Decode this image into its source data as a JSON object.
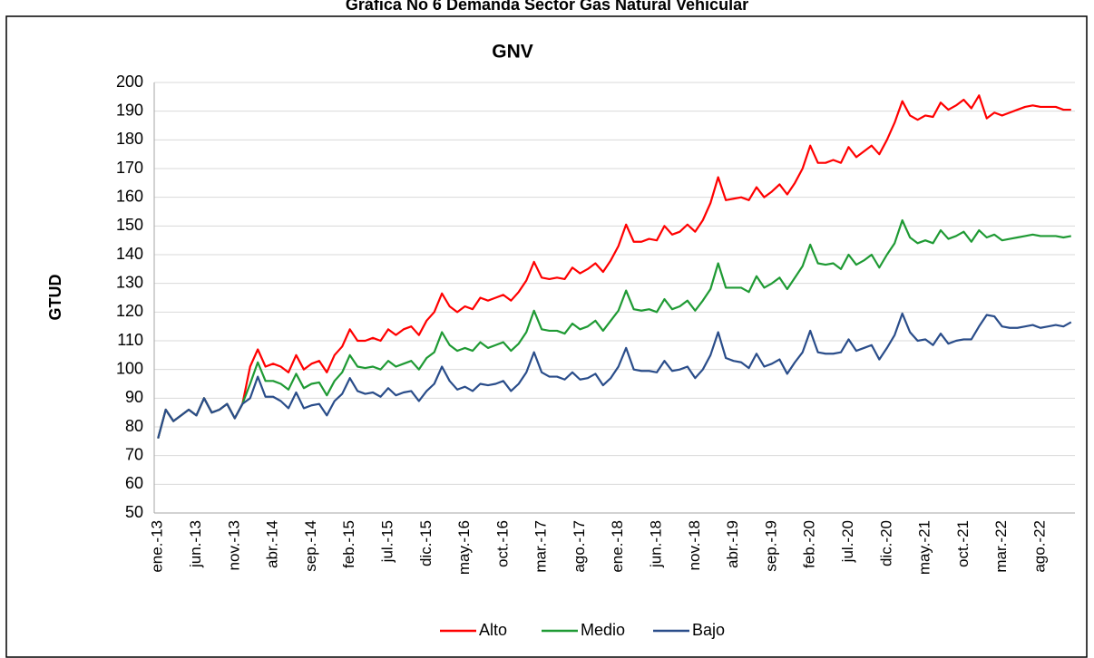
{
  "chart_data": {
    "type": "line",
    "caption": "Gráfica No 6 Demanda Sector Gas Natural Vehicular",
    "title": "GNV",
    "y_label": "GTUD",
    "categories": [
      "ene.-13",
      null,
      null,
      null,
      null,
      "jun.-13",
      null,
      null,
      null,
      null,
      "nov.-13",
      null,
      null,
      null,
      null,
      "abr.-14",
      null,
      null,
      null,
      null,
      "sep.-14",
      null,
      null,
      null,
      null,
      "feb.-15",
      null,
      null,
      null,
      null,
      "jul.-15",
      null,
      null,
      null,
      null,
      "dic.-15",
      null,
      null,
      null,
      null,
      "may.-16",
      null,
      null,
      null,
      null,
      "oct.-16",
      null,
      null,
      null,
      null,
      "mar.-17",
      null,
      null,
      null,
      null,
      "ago.-17",
      null,
      null,
      null,
      null,
      "ene.-18",
      null,
      null,
      null,
      null,
      "jun.-18",
      null,
      null,
      null,
      null,
      "nov.-18",
      null,
      null,
      null,
      null,
      "abr.-19",
      null,
      null,
      null,
      null,
      "sep.-19",
      null,
      null,
      null,
      null,
      "feb.-20",
      null,
      null,
      null,
      null,
      "jul.-20",
      null,
      null,
      null,
      null,
      "dic.-20",
      null,
      null,
      null,
      null,
      "may.-21",
      null,
      null,
      null,
      null,
      "oct.-21",
      null,
      null,
      null,
      null,
      "mar.-22",
      null,
      null,
      null,
      null,
      "ago.-22",
      null,
      null,
      null,
      null
    ],
    "series": [
      {
        "name": "Alto",
        "color": "#ff0000",
        "values": [
          76,
          86,
          82,
          84,
          86,
          84,
          90,
          85,
          86,
          88,
          83,
          88,
          101,
          107,
          101,
          102,
          101,
          99,
          105,
          100,
          102,
          103,
          99,
          105,
          108,
          114,
          110,
          110,
          111,
          110,
          114,
          112,
          114,
          115,
          112,
          117,
          120,
          126.5,
          122,
          120,
          122,
          121,
          125,
          124,
          125,
          126,
          124,
          127,
          131,
          137.5,
          132,
          131.5,
          132,
          131.5,
          135.5,
          133.5,
          135,
          137,
          134,
          138,
          143,
          150.5,
          144.5,
          144.5,
          145.5,
          145,
          150,
          147,
          148,
          150.5,
          148,
          152,
          158,
          167,
          159,
          159.5,
          160,
          159,
          163.5,
          160,
          162,
          164.5,
          161,
          165,
          170,
          178,
          172,
          172,
          173,
          172,
          177.5,
          174,
          176,
          178,
          175,
          180,
          186,
          193.5,
          188.5,
          187,
          188.5,
          188,
          193,
          190.5,
          192,
          194,
          191,
          195.5,
          187.5,
          189.5,
          188.5,
          189.5,
          190.5,
          191.5,
          192,
          191.5,
          191.5,
          191.5,
          190.5,
          190.5
        ]
      },
      {
        "name": "Medio",
        "color": "#1f9a34",
        "values": [
          76,
          86,
          82,
          84,
          86,
          84,
          90,
          85,
          86,
          88,
          83,
          88,
          95,
          102.5,
          96,
          96,
          95,
          93,
          98.5,
          93.5,
          95,
          95.5,
          91,
          96,
          99,
          105,
          101,
          100.5,
          101,
          100,
          103,
          101,
          102,
          103,
          100,
          104,
          106,
          113,
          108.5,
          106.5,
          107.5,
          106.5,
          109.5,
          107.5,
          108.5,
          109.5,
          106.5,
          109,
          113,
          120.5,
          114,
          113.5,
          113.5,
          112.5,
          116,
          114,
          115,
          117,
          113.5,
          117,
          120.5,
          127.5,
          121,
          120.5,
          121,
          120,
          124.5,
          121,
          122,
          124,
          120.5,
          124,
          128,
          137,
          128.5,
          128.5,
          128.5,
          127,
          132.5,
          128.5,
          130,
          132,
          128,
          132,
          136,
          143.5,
          137,
          136.5,
          137,
          135,
          140,
          136.5,
          138,
          140,
          135.5,
          140,
          144,
          152,
          146,
          144,
          145,
          144,
          148.5,
          145.5,
          146.5,
          148,
          144.5,
          148.5,
          146,
          147,
          145,
          145.5,
          146,
          146.5,
          147,
          146.5,
          146.5,
          146.5,
          146,
          146.5
        ]
      },
      {
        "name": "Bajo",
        "color": "#2a4d8a",
        "values": [
          76,
          86,
          82,
          84,
          86,
          84,
          90,
          85,
          86,
          88,
          83,
          88,
          90,
          97.5,
          90.5,
          90.5,
          89,
          86.5,
          92,
          86.5,
          87.5,
          88,
          84,
          89,
          91.5,
          97,
          92.5,
          91.5,
          92,
          90.5,
          93.5,
          91,
          92,
          92.5,
          89,
          92.5,
          95,
          101,
          96,
          93,
          94,
          92.5,
          95,
          94.5,
          95,
          96,
          92.5,
          95,
          99,
          106,
          99,
          97.5,
          97.5,
          96.5,
          99,
          96.5,
          97,
          98.5,
          94.5,
          97,
          101,
          107.5,
          100,
          99.5,
          99.5,
          99,
          103,
          99.5,
          100,
          101,
          97,
          100,
          105,
          113,
          104,
          103,
          102.5,
          100.5,
          105.5,
          101,
          102,
          103.5,
          98.5,
          102.5,
          106,
          113.5,
          106,
          105.5,
          105.5,
          106,
          110.5,
          106.5,
          107.5,
          108.5,
          103.5,
          107.5,
          112,
          119.5,
          113,
          110,
          110.5,
          108.5,
          112.5,
          109,
          110,
          110.5,
          110.5,
          115,
          119,
          118.5,
          115,
          114.5,
          114.5,
          115,
          115.5,
          114.5,
          115,
          115.5,
          115,
          116.5
        ]
      }
    ],
    "ylim": [
      50,
      200
    ],
    "yticks": [
      50,
      60,
      70,
      80,
      90,
      100,
      110,
      120,
      130,
      140,
      150,
      160,
      170,
      180,
      190,
      200
    ],
    "grid": true,
    "legend": "bottom"
  }
}
